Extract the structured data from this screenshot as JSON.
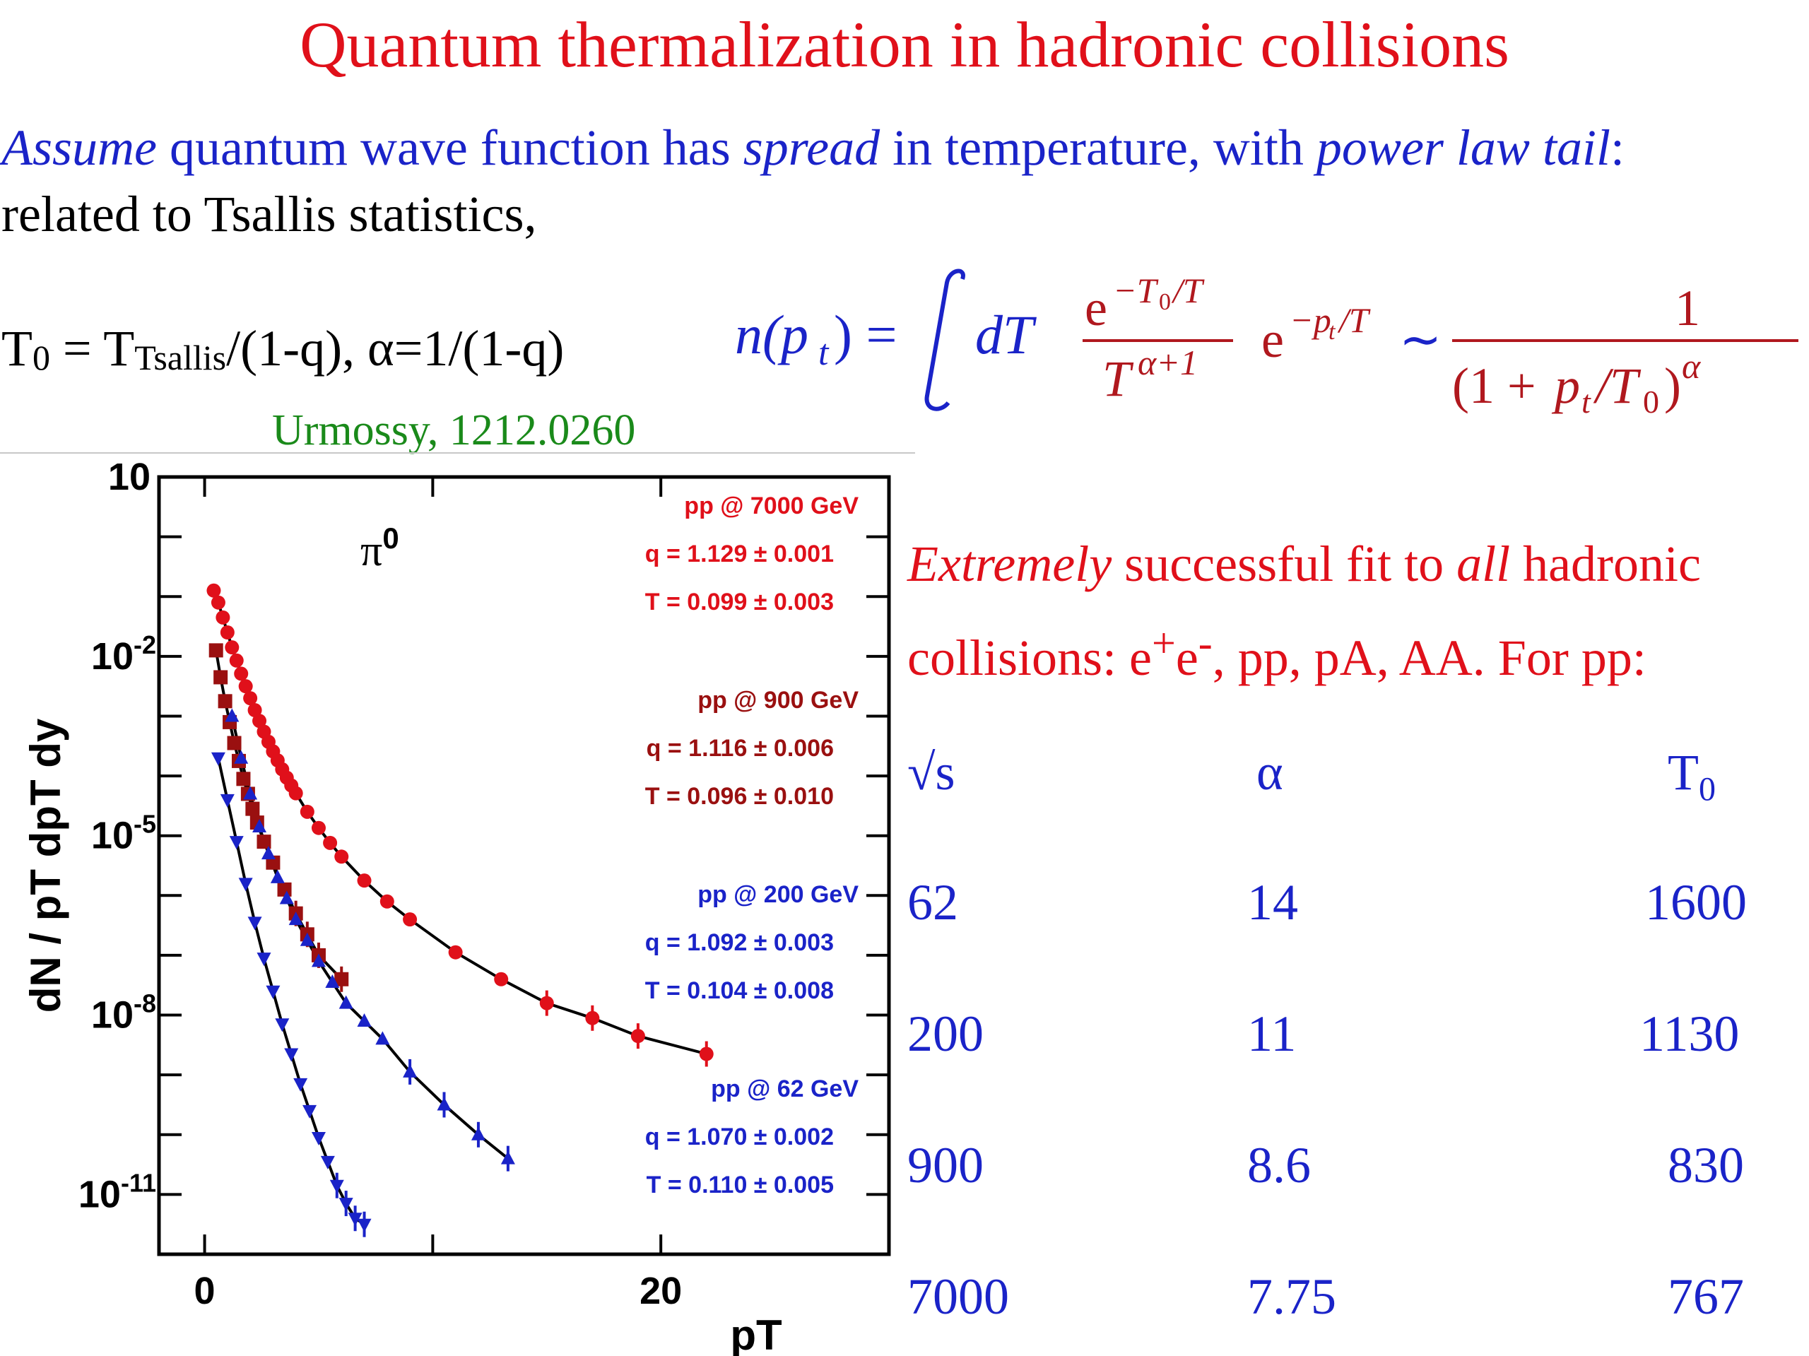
{
  "title": "Quantum thermalization in hadronic collisions",
  "intro": {
    "w1": "Assume",
    "w2": " quantum wave function has ",
    "w3": "spread",
    "w4": " in temperature, with ",
    "w5": "power law tail",
    "w6": ":",
    "line2": "related to Tsallis statistics,"
  },
  "tdef": {
    "a": "T",
    "b": "0",
    "c": " = T",
    "d": "Tsallis",
    "e": "/(1-q), α=1/(1-q)"
  },
  "citation": "Urmossy, 1212.0260",
  "fit_text": {
    "w1": "Extremely",
    "w2": " successful fit to ",
    "w3": "all",
    "w4": " hadronic collisions: e",
    "w5": "+",
    "w6": "e",
    "w7": "-",
    "w8": ", pp, pA, AA.  For pp:"
  },
  "table": {
    "headers": [
      "√s",
      "α",
      "T0"
    ],
    "rows": [
      [
        "62",
        "14",
        "1600"
      ],
      [
        "200",
        "11",
        "1130"
      ],
      [
        "900",
        "8.6",
        "830"
      ],
      [
        "7000",
        "7.75",
        "767"
      ]
    ]
  },
  "colors": {
    "red": "#e0101a",
    "darkred": "#9a1010",
    "blue": "#1a23c8",
    "green": "#1a8a1a"
  },
  "chart_data": {
    "type": "scatter",
    "xlabel": "pT",
    "ylabel": "dN / pT dpT dy",
    "yscale": "log",
    "particle_label": "π0",
    "xticks": [
      "0",
      "20"
    ],
    "yticks": [
      {
        "base": "10",
        "exp": ""
      },
      {
        "base": "10",
        "exp": "-2"
      },
      {
        "base": "10",
        "exp": "-5"
      },
      {
        "base": "10",
        "exp": "-8"
      },
      {
        "base": "10",
        "exp": "-11"
      }
    ],
    "xlim": [
      -2,
      30
    ],
    "ylim_log10": [
      -12,
      1
    ],
    "series": [
      {
        "name": "pp @ 7000 GeV",
        "q": "q = 1.129 ± 0.001",
        "T": "T = 0.099 ± 0.003",
        "color": "#e0101a",
        "marker": "circle",
        "x": [
          0.4,
          0.6,
          0.8,
          1.0,
          1.2,
          1.4,
          1.6,
          1.8,
          2.0,
          2.2,
          2.4,
          2.6,
          2.8,
          3.0,
          3.2,
          3.4,
          3.6,
          3.8,
          4.0,
          4.5,
          5.0,
          5.5,
          6.0,
          7.0,
          8.0,
          9.0,
          11.0,
          13.0,
          15.0,
          17.0,
          19.0,
          22.0
        ],
        "logy": [
          -0.9,
          -1.1,
          -1.35,
          -1.6,
          -1.85,
          -2.07,
          -2.29,
          -2.5,
          -2.7,
          -2.9,
          -3.08,
          -3.26,
          -3.43,
          -3.59,
          -3.74,
          -3.89,
          -4.03,
          -4.16,
          -4.29,
          -4.6,
          -4.87,
          -5.12,
          -5.35,
          -5.75,
          -6.1,
          -6.4,
          -6.95,
          -7.4,
          -7.8,
          -8.05,
          -8.35,
          -8.65
        ]
      },
      {
        "name": "pp @ 900 GeV",
        "q": "q = 1.116 ± 0.006",
        "T": "T = 0.096 ± 0.010",
        "color": "#9a1010",
        "marker": "square",
        "x": [
          0.5,
          0.7,
          0.9,
          1.1,
          1.3,
          1.5,
          1.7,
          1.9,
          2.1,
          2.3,
          2.6,
          3.0,
          3.5,
          4.0,
          4.5,
          5.0,
          6.0
        ],
        "logy": [
          -1.9,
          -2.35,
          -2.75,
          -3.1,
          -3.45,
          -3.75,
          -4.05,
          -4.3,
          -4.55,
          -4.78,
          -5.1,
          -5.45,
          -5.9,
          -6.3,
          -6.65,
          -7.0,
          -7.4
        ]
      },
      {
        "name": "pp @ 200 GeV",
        "q": "q = 1.092 ± 0.003",
        "T": "T = 0.104 ± 0.008",
        "color": "#1a23c8",
        "marker": "triangle-up",
        "x": [
          1.2,
          1.6,
          2.0,
          2.4,
          2.8,
          3.2,
          3.6,
          4.0,
          4.5,
          5.0,
          5.6,
          6.2,
          7.0,
          7.8,
          9.0,
          10.5,
          12.0,
          13.3
        ],
        "logy": [
          -3.0,
          -3.7,
          -4.3,
          -4.85,
          -5.3,
          -5.7,
          -6.05,
          -6.4,
          -6.75,
          -7.1,
          -7.45,
          -7.8,
          -8.1,
          -8.4,
          -8.95,
          -9.5,
          -10.0,
          -10.4
        ]
      },
      {
        "name": "pp @ 62 GeV",
        "q": "q = 1.070 ± 0.002",
        "T": "T = 0.110 ± 0.005",
        "color": "#1a23c8",
        "marker": "triangle-down",
        "x": [
          0.6,
          1.0,
          1.4,
          1.8,
          2.2,
          2.6,
          3.0,
          3.4,
          3.8,
          4.2,
          4.6,
          5.0,
          5.4,
          5.8,
          6.2,
          6.6,
          7.0
        ],
        "logy": [
          -3.7,
          -4.4,
          -5.1,
          -5.8,
          -6.45,
          -7.05,
          -7.6,
          -8.15,
          -8.65,
          -9.15,
          -9.6,
          -10.05,
          -10.45,
          -10.85,
          -11.15,
          -11.4,
          -11.5
        ]
      }
    ]
  }
}
